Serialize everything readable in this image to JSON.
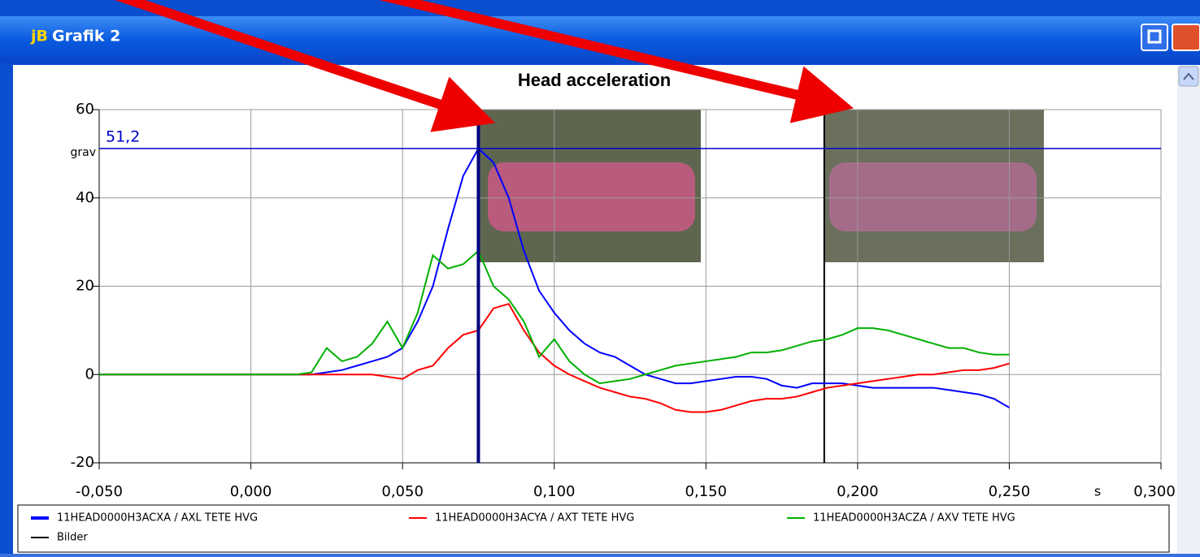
{
  "window": {
    "icon_text": "jB",
    "title": "Grafik 2"
  },
  "chart_data": {
    "type": "line",
    "title": "Head acceleration",
    "y_unit": "grav",
    "x_unit": "s",
    "xlim": [
      -0.05,
      0.3
    ],
    "xticks": [
      {
        "value": -0.05,
        "label": "-0,050"
      },
      {
        "value": 0,
        "label": "0,000"
      },
      {
        "value": 0.05,
        "label": "0,050"
      },
      {
        "value": 0.1,
        "label": "0,100"
      },
      {
        "value": 0.15,
        "label": "0,150"
      },
      {
        "value": 0.2,
        "label": "0,200"
      },
      {
        "value": 0.25,
        "label": "0,250"
      },
      {
        "value": 0.3,
        "label": "0,300"
      }
    ],
    "ylim": [
      -20,
      60
    ],
    "yticks": [
      -20,
      0,
      20,
      40,
      60
    ],
    "grid": true,
    "x": [
      -0.05,
      -0.045,
      -0.04,
      -0.035,
      -0.03,
      -0.025,
      -0.02,
      -0.015,
      -0.01,
      -0.005,
      0,
      0.005,
      0.01,
      0.015,
      0.02,
      0.025,
      0.03,
      0.035,
      0.04,
      0.045,
      0.05,
      0.055,
      0.06,
      0.065,
      0.07,
      0.075,
      0.08,
      0.085,
      0.09,
      0.095,
      0.1,
      0.105,
      0.11,
      0.115,
      0.12,
      0.125,
      0.13,
      0.135,
      0.14,
      0.145,
      0.15,
      0.155,
      0.16,
      0.165,
      0.17,
      0.175,
      0.18,
      0.185,
      0.19,
      0.195,
      0.2,
      0.205,
      0.21,
      0.215,
      0.22,
      0.225,
      0.23,
      0.235,
      0.24,
      0.245,
      0.25
    ],
    "series": [
      {
        "name": "11HEAD0000H3ACXA / AXL TETE HVG",
        "color": "#0000ff",
        "values": [
          0,
          0,
          0,
          0,
          0,
          0,
          0,
          0,
          0,
          0,
          0,
          0,
          0,
          0,
          0,
          0.5,
          1,
          2,
          3,
          4,
          6,
          12,
          20,
          33,
          45,
          51.2,
          48,
          40,
          28,
          19,
          14,
          10,
          7,
          5,
          4,
          2,
          0,
          -1,
          -2,
          -2,
          -1.5,
          -1,
          -0.5,
          -0.5,
          -1,
          -2.5,
          -3,
          -2,
          -2,
          -2,
          -2.5,
          -3,
          -3,
          -3,
          -3,
          -3,
          -3.5,
          -4,
          -4.5,
          -5.5,
          -7.5
        ]
      },
      {
        "name": "11HEAD0000H3ACYA / AXT TETE HVG",
        "color": "#ff0000",
        "values": [
          0,
          0,
          0,
          0,
          0,
          0,
          0,
          0,
          0,
          0,
          0,
          0,
          0,
          0,
          0,
          0,
          0,
          0,
          0,
          -0.5,
          -1,
          1,
          2,
          6,
          9,
          10,
          15,
          16,
          10,
          5,
          2,
          0,
          -1.5,
          -3,
          -4,
          -5,
          -5.5,
          -6.5,
          -8,
          -8.5,
          -8.5,
          -8,
          -7,
          -6,
          -5.5,
          -5.5,
          -5,
          -4,
          -3,
          -2.5,
          -2,
          -1.5,
          -1,
          -0.5,
          0,
          0,
          0.5,
          1,
          1,
          1.5,
          2.5
        ]
      },
      {
        "name": "11HEAD0000H3ACZA / AXV TETE HVG",
        "color": "#00b000",
        "values": [
          0,
          0,
          0,
          0,
          0,
          0,
          0,
          0,
          0,
          0,
          0,
          0,
          0,
          0,
          0.5,
          6,
          3,
          4,
          7,
          12,
          6,
          14,
          27,
          24,
          25,
          28,
          20,
          17,
          12,
          4,
          8,
          3,
          0,
          -2,
          -1.5,
          -1,
          0,
          1,
          2,
          2.5,
          3,
          3.5,
          4,
          5,
          5,
          5.5,
          6.5,
          7.5,
          8,
          9,
          10.5,
          10.5,
          10,
          9,
          8,
          7,
          6,
          6,
          5,
          4.5,
          4.5
        ]
      }
    ],
    "image_markers": {
      "name": "Bilder",
      "color": "#000000",
      "x": [
        0.189
      ]
    },
    "cursor": {
      "x": 0.075,
      "y": {
        "value": 51.2,
        "label": "51,2"
      },
      "color": "#0000cc"
    }
  }
}
